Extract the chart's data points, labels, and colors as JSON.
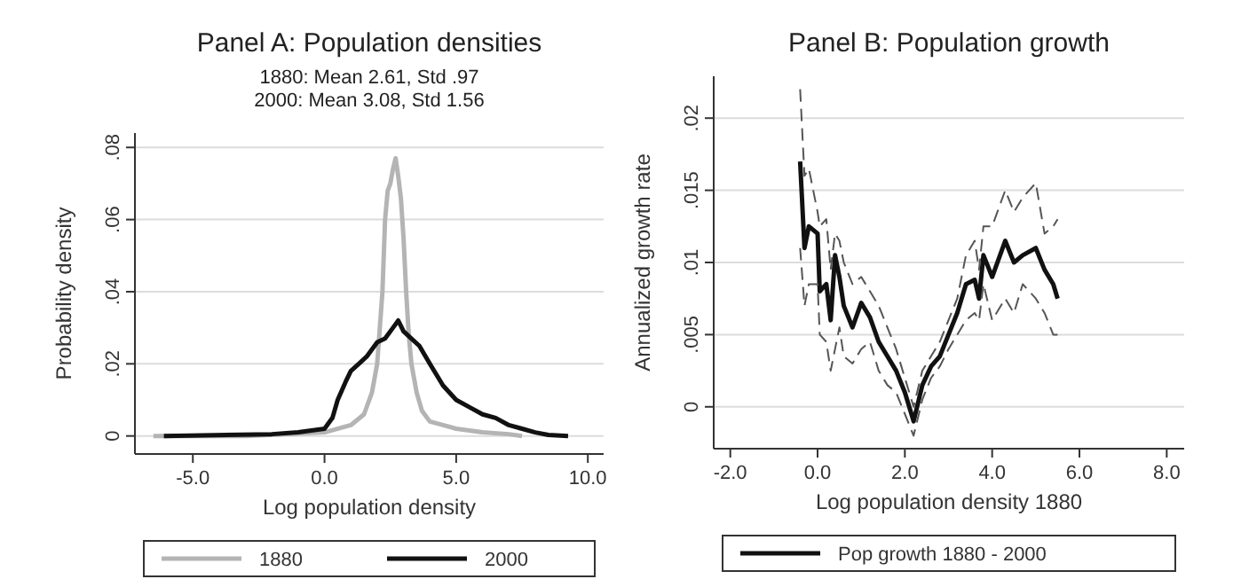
{
  "chart_data": [
    {
      "type": "line",
      "title": "Panel A: Population densities",
      "subtitle": "1880: Mean 2.61, Std .97\n2000: Mean 3.08, Std 1.56",
      "xlabel": "Log population density",
      "ylabel": "Probability density",
      "xlim": [
        -7.2,
        10.6
      ],
      "ylim": [
        -0.005,
        0.084
      ],
      "xticks": [
        {
          "value": -5,
          "label": "-5.0"
        },
        {
          "value": 0,
          "label": "0.0"
        },
        {
          "value": 5,
          "label": "5.0"
        },
        {
          "value": 10,
          "label": "10.0"
        }
      ],
      "yticks": [
        {
          "value": 0,
          "label": "0"
        },
        {
          "value": 0.02,
          "label": ".02"
        },
        {
          "value": 0.04,
          "label": ".04"
        },
        {
          "value": 0.06,
          "label": ".06"
        },
        {
          "value": 0.08,
          "label": ".08"
        }
      ],
      "grid": "y",
      "legend": "bottom",
      "series": [
        {
          "name": "1880",
          "color": "#b4b4b4",
          "x": [
            -6.5,
            -3,
            0,
            1,
            1.5,
            1.8,
            2,
            2.2,
            2.3,
            2.4,
            2.5,
            2.6,
            2.7,
            2.8,
            2.9,
            3,
            3.1,
            3.2,
            3.3,
            3.5,
            3.7,
            4,
            4.5,
            5,
            6,
            7,
            7.5
          ],
          "values": [
            0,
            0,
            0.001,
            0.003,
            0.006,
            0.012,
            0.02,
            0.04,
            0.06,
            0.068,
            0.07,
            0.074,
            0.077,
            0.072,
            0.066,
            0.055,
            0.04,
            0.028,
            0.02,
            0.012,
            0.007,
            0.004,
            0.003,
            0.002,
            0.001,
            0.0005,
            0
          ]
        },
        {
          "name": "2000",
          "color": "#111111",
          "x": [
            -6.1,
            -2,
            -1,
            0,
            0.3,
            0.5,
            0.8,
            1,
            1.3,
            1.6,
            2,
            2.3,
            2.6,
            2.8,
            3,
            3.3,
            3.6,
            4,
            4.5,
            5,
            5.5,
            6,
            6.5,
            7,
            7.5,
            8,
            8.5,
            9.25
          ],
          "values": [
            0,
            0.0005,
            0.001,
            0.002,
            0.005,
            0.01,
            0.015,
            0.018,
            0.02,
            0.022,
            0.026,
            0.027,
            0.03,
            0.032,
            0.029,
            0.027,
            0.025,
            0.02,
            0.014,
            0.01,
            0.008,
            0.006,
            0.005,
            0.003,
            0.002,
            0.001,
            0.0003,
            0
          ]
        }
      ]
    },
    {
      "type": "line",
      "title": "Panel B: Population growth",
      "xlabel": "Log population density 1880",
      "ylabel": "Annualized growth rate",
      "xlim": [
        -2.38,
        8.4
      ],
      "ylim": [
        -0.0029,
        0.0229
      ],
      "xticks": [
        {
          "value": -2,
          "label": "-2.0"
        },
        {
          "value": 0,
          "label": "0.0"
        },
        {
          "value": 2,
          "label": "2.0"
        },
        {
          "value": 4,
          "label": "4.0"
        },
        {
          "value": 6,
          "label": "6.0"
        },
        {
          "value": 8,
          "label": "8.0"
        }
      ],
      "yticks": [
        {
          "value": 0,
          "label": "0"
        },
        {
          "value": 0.005,
          "label": ".005"
        },
        {
          "value": 0.01,
          "label": ".01"
        },
        {
          "value": 0.015,
          "label": ".015"
        },
        {
          "value": 0.02,
          "label": ".02"
        }
      ],
      "grid": "y",
      "legend": "bottom",
      "series": [
        {
          "name": "Pop growth 1880 - 2000",
          "color": "#111111",
          "x": [
            -0.4,
            -0.3,
            -0.2,
            0,
            0.05,
            0.2,
            0.3,
            0.4,
            0.5,
            0.6,
            0.8,
            1,
            1.2,
            1.4,
            1.6,
            1.8,
            2,
            2.2,
            2.4,
            2.6,
            2.8,
            3,
            3.2,
            3.4,
            3.6,
            3.7,
            3.8,
            4,
            4.3,
            4.5,
            4.7,
            5,
            5.2,
            5.4,
            5.5
          ],
          "values": [
            0.017,
            0.011,
            0.0125,
            0.012,
            0.008,
            0.0085,
            0.006,
            0.0105,
            0.009,
            0.007,
            0.0055,
            0.0072,
            0.0062,
            0.0045,
            0.0035,
            0.0025,
            0.001,
            -0.001,
            0.0015,
            0.0028,
            0.0035,
            0.005,
            0.0065,
            0.0085,
            0.0088,
            0.0075,
            0.0105,
            0.009,
            0.0115,
            0.01,
            0.0105,
            0.011,
            0.0095,
            0.0085,
            0.0075
          ],
          "line_style": "solid"
        },
        {
          "color": "#555555",
          "line_style": "dashed",
          "x": [
            -0.4,
            -0.3,
            -0.2,
            0,
            0.05,
            0.2,
            0.3,
            0.4,
            0.5,
            0.6,
            0.8,
            1,
            1.2,
            1.4,
            1.6,
            1.8,
            2,
            2.2,
            2.4,
            2.6,
            2.8,
            3,
            3.2,
            3.4,
            3.6,
            3.7,
            3.8,
            4,
            4.3,
            4.5,
            4.7,
            5,
            5.2,
            5.4,
            5.5
          ],
          "values": [
            0.022,
            0.016,
            0.0165,
            0.0135,
            0.0125,
            0.013,
            0.0095,
            0.012,
            0.0115,
            0.01,
            0.0085,
            0.009,
            0.008,
            0.007,
            0.0055,
            0.004,
            0.002,
            0,
            0.0025,
            0.0035,
            0.0045,
            0.006,
            0.0075,
            0.0105,
            0.0115,
            0.0095,
            0.0125,
            0.0125,
            0.015,
            0.0135,
            0.0145,
            0.0155,
            0.012,
            0.0125,
            0.013
          ]
        },
        {
          "color": "#555555",
          "line_style": "dashed",
          "x": [
            -0.4,
            -0.3,
            -0.2,
            0,
            0.05,
            0.2,
            0.3,
            0.4,
            0.5,
            0.6,
            0.8,
            1,
            1.2,
            1.4,
            1.6,
            1.8,
            2,
            2.2,
            2.4,
            2.6,
            2.8,
            3,
            3.2,
            3.4,
            3.6,
            3.7,
            3.8,
            4,
            4.3,
            4.5,
            4.7,
            5,
            5.2,
            5.4,
            5.5
          ],
          "values": [
            0.011,
            0.007,
            0.0085,
            0.0085,
            0.005,
            0.0045,
            0.0025,
            0.004,
            0.0055,
            0.0035,
            0.003,
            0.004,
            0.0045,
            0.0025,
            0.0015,
            0.001,
            -0.0005,
            -0.002,
            0.0005,
            0.002,
            0.0028,
            0.004,
            0.005,
            0.006,
            0.0065,
            0.006,
            0.0085,
            0.006,
            0.0075,
            0.0065,
            0.0085,
            0.0075,
            0.0065,
            0.005,
            0.005
          ]
        }
      ]
    }
  ]
}
